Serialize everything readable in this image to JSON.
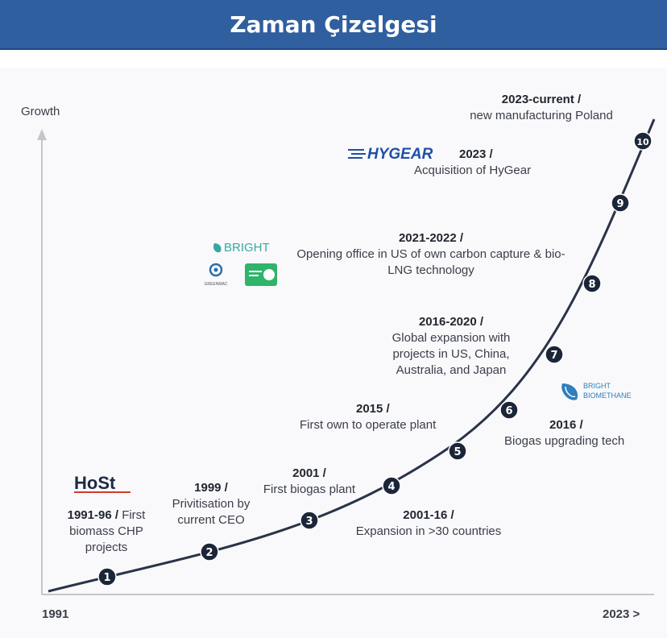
{
  "header": {
    "title": "Zaman Çizelgesi"
  },
  "axis": {
    "y_label": "Growth",
    "x_start": "1991",
    "x_end": "2023 >"
  },
  "nodes": [
    "1",
    "2",
    "3",
    "4",
    "5",
    "6",
    "7",
    "8",
    "9",
    "10"
  ],
  "milestones": {
    "m1": {
      "year": "1991-96 /",
      "text1": "First",
      "text2": "biomass CHP",
      "text3": "projects"
    },
    "m2": {
      "year": "1999 /",
      "text1": "Privitisation by",
      "text2": "current CEO"
    },
    "m3": {
      "year": "2001 /",
      "text1": "First biogas plant"
    },
    "m4": {
      "year": "2001-16 /",
      "text1": "Expansion in >30 countries"
    },
    "m5": {
      "year": "2015 /",
      "text1": "First own to operate plant"
    },
    "m6": {
      "year": "2016 /",
      "text1": "Biogas upgrading tech"
    },
    "m7": {
      "year": "2016-2020 /",
      "text1": "Global expansion with",
      "text2": "projects in US, China,",
      "text3": "Australia, and Japan"
    },
    "m8": {
      "year": "2021-2022 /",
      "text1": "Opening office in US of own carbon capture & bio-",
      "text2": "LNG technology"
    },
    "m9": {
      "year": "2023 /",
      "text1": "Acquisition of HyGear"
    },
    "m10": {
      "year": "2023-current /",
      "text1": "new manufacturing Poland"
    }
  },
  "logos": {
    "host": "HoSt",
    "hygear": "HYGEAR",
    "bright": "BRIGHT",
    "greenmac": "GREENMAC",
    "bright_biomethane_1": "BRIGHT",
    "bright_biomethane_2": "BIOMETHANE"
  },
  "colors": {
    "header": "#2f5f9e",
    "node": "#1c2639",
    "curve": "#2a3348",
    "hygear": "#1f4fa8",
    "bright_teal": "#3aa6a0",
    "green": "#2fb46a",
    "host_red": "#d23a2e"
  }
}
